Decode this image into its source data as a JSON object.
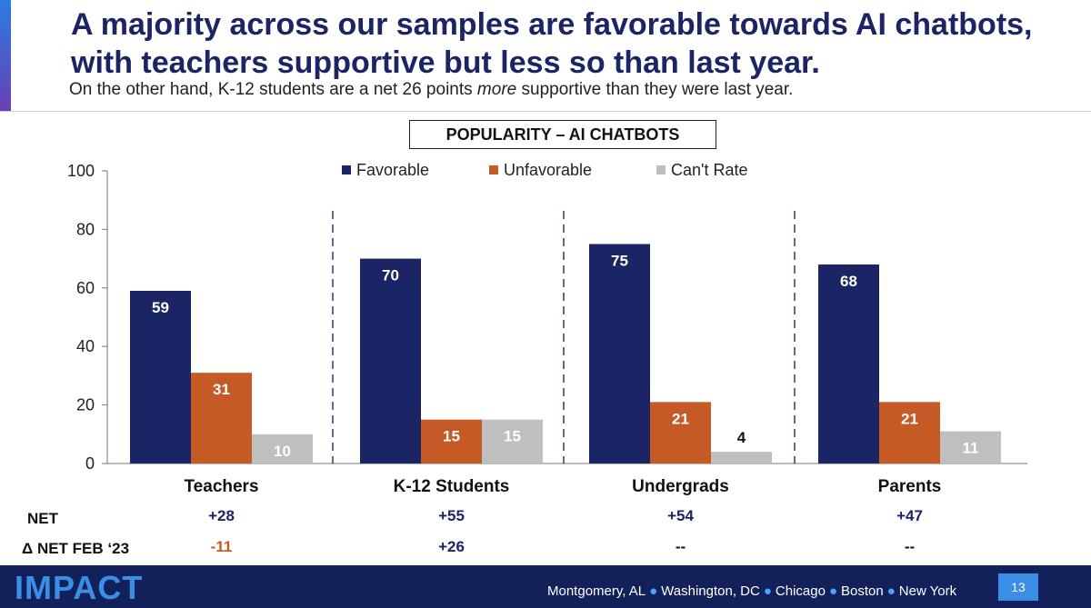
{
  "header": {
    "title": "A majority across our samples are favorable towards AI chatbots, with teachers supportive but less so than last year.",
    "subtitle_pre": "On the other hand, K-12 students are a net 26 points ",
    "subtitle_em": "more",
    "subtitle_post": " supportive than they were last year."
  },
  "chart_data": {
    "type": "bar",
    "title": "POPULARITY – AI CHATBOTS",
    "categories": [
      "Teachers",
      "K-12 Students",
      "Undergrads",
      "Parents"
    ],
    "series": [
      {
        "name": "Favorable",
        "color": "#1b2566",
        "values": [
          59,
          70,
          75,
          68
        ]
      },
      {
        "name": "Unfavorable",
        "color": "#c55a27",
        "values": [
          31,
          15,
          21,
          21
        ]
      },
      {
        "name": "Can't Rate",
        "color": "#bfbfbf",
        "values": [
          10,
          15,
          4,
          11
        ]
      }
    ],
    "ylim": [
      0,
      100
    ],
    "yticks": [
      0,
      20,
      40,
      60,
      80,
      100
    ],
    "legend_position": "top",
    "net_label": "NET",
    "net_values": [
      "+28",
      "+55",
      "+54",
      "+47"
    ],
    "delta_label": "Δ NET FEB ‘23",
    "delta_values": [
      "-11",
      "+26",
      "--",
      "--"
    ],
    "delta_colors": [
      "#c55a27",
      "#1b2566",
      "#111111",
      "#111111"
    ]
  },
  "footer": {
    "logo": "IMPACT",
    "cities": [
      "Montgomery, AL",
      "Washington, DC",
      "Chicago",
      "Boston",
      "New York"
    ],
    "page_number": "13"
  }
}
